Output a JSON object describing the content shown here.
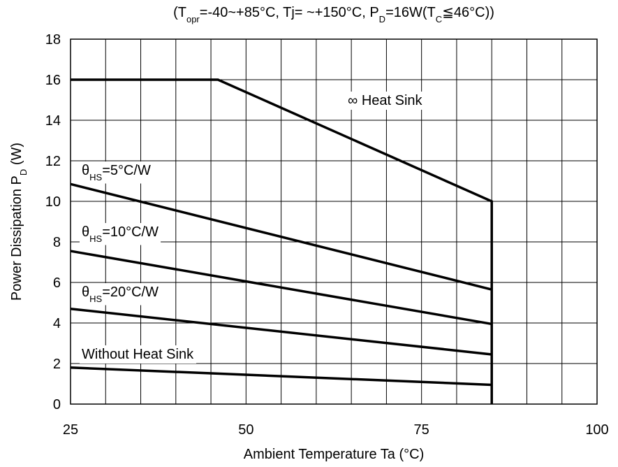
{
  "chart_data": {
    "type": "line",
    "title": [
      "(T",
      "opr",
      "=-40~+85°C, Tj= ~+150°C, P",
      "D",
      "=16W(T",
      "C",
      "≦46°C))"
    ],
    "x_label": "Ambient Temperature  Ta  (°C)",
    "y_label": [
      "Power Dissipation  P",
      "D",
      "  (W)"
    ],
    "xlim": [
      25,
      100
    ],
    "ylim": [
      0,
      18
    ],
    "xticks": [
      25,
      50,
      75,
      100
    ],
    "yticks": [
      0,
      2,
      4,
      6,
      8,
      10,
      12,
      14,
      16,
      18
    ],
    "xgrid": [
      25,
      30,
      35,
      40,
      45,
      50,
      55,
      60,
      65,
      70,
      75,
      80,
      85,
      90,
      95,
      100
    ],
    "grid": true,
    "series": [
      {
        "name": [
          "∞ Heat Sink"
        ],
        "color": "#000000",
        "x": [
          25,
          46,
          85,
          85
        ],
        "values": [
          16,
          16,
          10,
          0
        ]
      },
      {
        "name": [
          "θ",
          "HS",
          "=5°C/W"
        ],
        "color": "#000000",
        "x": [
          25,
          85
        ],
        "values": [
          10.85,
          5.65
        ]
      },
      {
        "name": [
          "θ",
          "HS",
          "=10°C/W"
        ],
        "color": "#000000",
        "x": [
          25,
          85
        ],
        "values": [
          7.55,
          3.95
        ]
      },
      {
        "name": [
          "θ",
          "HS",
          "=20°C/W"
        ],
        "color": "#000000",
        "x": [
          25,
          85
        ],
        "values": [
          4.7,
          2.45
        ]
      },
      {
        "name": [
          "Without Heat Sink"
        ],
        "color": "#000000",
        "x": [
          25,
          85
        ],
        "values": [
          1.8,
          0.95
        ]
      }
    ]
  }
}
